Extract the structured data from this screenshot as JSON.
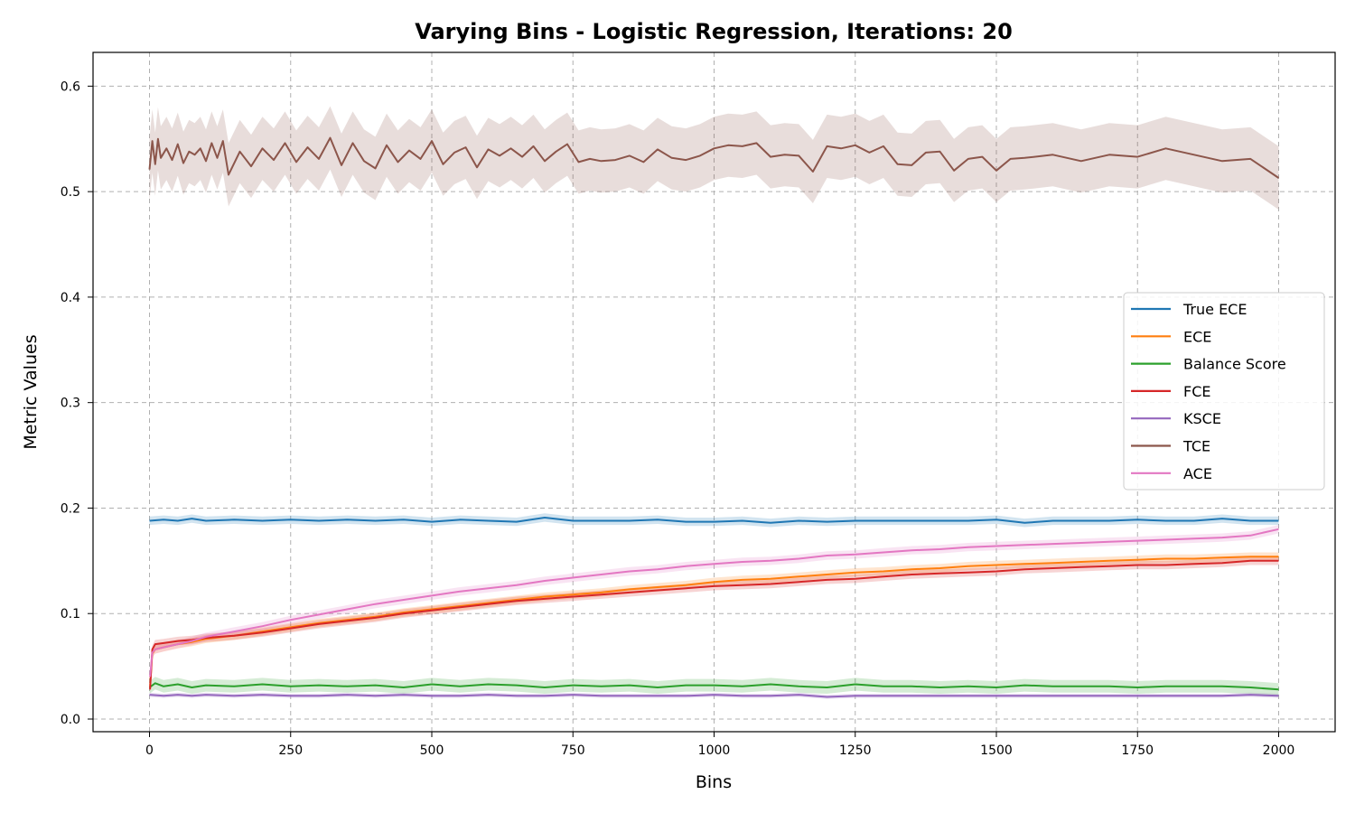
{
  "chart_data": {
    "type": "line",
    "title": "Varying Bins - Logistic Regression, Iterations: 20",
    "xlabel": "Bins",
    "ylabel": "Metric Values",
    "xlim": [
      -100,
      2100
    ],
    "ylim": [
      -0.012,
      0.632
    ],
    "xticks": [
      0,
      250,
      500,
      750,
      1000,
      1250,
      1500,
      1750,
      2000
    ],
    "xtick_labels": [
      "0",
      "250",
      "500",
      "750",
      "1000",
      "1250",
      "1500",
      "1750",
      "2000"
    ],
    "yticks": [
      0.0,
      0.1,
      0.2,
      0.3,
      0.4,
      0.5,
      0.6
    ],
    "ytick_labels": [
      "0.0",
      "0.1",
      "0.2",
      "0.3",
      "0.4",
      "0.5",
      "0.6"
    ],
    "grid": true,
    "legend_position": "center-right",
    "series": [
      {
        "name": "True ECE",
        "color": "#1f77b4",
        "x": [
          0,
          25,
          50,
          75,
          100,
          150,
          200,
          250,
          300,
          350,
          400,
          450,
          500,
          550,
          600,
          650,
          700,
          750,
          800,
          850,
          900,
          950,
          1000,
          1050,
          1100,
          1150,
          1200,
          1250,
          1300,
          1350,
          1400,
          1450,
          1500,
          1550,
          1600,
          1650,
          1700,
          1750,
          1800,
          1850,
          1900,
          1950,
          2000
        ],
        "y": [
          0.188,
          0.189,
          0.188,
          0.19,
          0.188,
          0.189,
          0.188,
          0.189,
          0.188,
          0.189,
          0.188,
          0.189,
          0.187,
          0.189,
          0.188,
          0.187,
          0.191,
          0.188,
          0.188,
          0.188,
          0.189,
          0.187,
          0.187,
          0.188,
          0.186,
          0.188,
          0.187,
          0.188,
          0.188,
          0.188,
          0.188,
          0.188,
          0.189,
          0.186,
          0.188,
          0.188,
          0.188,
          0.189,
          0.188,
          0.188,
          0.19,
          0.188,
          0.188
        ],
        "band": 0.004
      },
      {
        "name": "ECE",
        "color": "#ff7f0e",
        "x": [
          1,
          5,
          10,
          25,
          50,
          75,
          100,
          150,
          200,
          250,
          300,
          350,
          400,
          450,
          500,
          550,
          600,
          650,
          700,
          750,
          800,
          850,
          900,
          950,
          1000,
          1050,
          1100,
          1150,
          1200,
          1250,
          1300,
          1350,
          1400,
          1450,
          1500,
          1550,
          1600,
          1650,
          1700,
          1750,
          1800,
          1850,
          1900,
          1950,
          2000
        ],
        "y": [
          0.031,
          0.062,
          0.066,
          0.068,
          0.071,
          0.073,
          0.076,
          0.079,
          0.083,
          0.087,
          0.091,
          0.094,
          0.097,
          0.101,
          0.104,
          0.107,
          0.11,
          0.113,
          0.116,
          0.118,
          0.12,
          0.123,
          0.125,
          0.127,
          0.13,
          0.132,
          0.133,
          0.135,
          0.137,
          0.139,
          0.14,
          0.142,
          0.143,
          0.145,
          0.146,
          0.147,
          0.148,
          0.149,
          0.15,
          0.151,
          0.152,
          0.152,
          0.153,
          0.154,
          0.154
        ],
        "band": 0.004
      },
      {
        "name": "Balance Score",
        "color": "#2ca02c",
        "x": [
          0,
          10,
          25,
          50,
          75,
          100,
          150,
          200,
          250,
          300,
          350,
          400,
          450,
          500,
          550,
          600,
          650,
          700,
          750,
          800,
          850,
          900,
          950,
          1000,
          1050,
          1100,
          1150,
          1200,
          1250,
          1300,
          1350,
          1400,
          1450,
          1500,
          1550,
          1600,
          1650,
          1700,
          1750,
          1800,
          1850,
          1900,
          1950,
          2000
        ],
        "y": [
          0.03,
          0.034,
          0.031,
          0.033,
          0.03,
          0.032,
          0.031,
          0.033,
          0.031,
          0.032,
          0.031,
          0.032,
          0.03,
          0.033,
          0.031,
          0.033,
          0.032,
          0.03,
          0.032,
          0.031,
          0.032,
          0.03,
          0.032,
          0.032,
          0.031,
          0.033,
          0.031,
          0.03,
          0.033,
          0.031,
          0.031,
          0.03,
          0.031,
          0.03,
          0.032,
          0.031,
          0.031,
          0.031,
          0.03,
          0.031,
          0.031,
          0.031,
          0.03,
          0.028
        ],
        "band": 0.006
      },
      {
        "name": "FCE",
        "color": "#d62728",
        "x": [
          1,
          5,
          10,
          25,
          50,
          75,
          100,
          150,
          200,
          250,
          300,
          350,
          400,
          450,
          500,
          550,
          600,
          650,
          700,
          750,
          800,
          850,
          900,
          950,
          1000,
          1050,
          1100,
          1150,
          1200,
          1250,
          1300,
          1350,
          1400,
          1450,
          1500,
          1550,
          1600,
          1650,
          1700,
          1750,
          1800,
          1850,
          1900,
          1950,
          2000
        ],
        "y": [
          0.028,
          0.066,
          0.071,
          0.072,
          0.074,
          0.075,
          0.077,
          0.079,
          0.082,
          0.086,
          0.09,
          0.093,
          0.096,
          0.1,
          0.103,
          0.106,
          0.109,
          0.112,
          0.114,
          0.116,
          0.118,
          0.12,
          0.122,
          0.124,
          0.126,
          0.127,
          0.128,
          0.13,
          0.132,
          0.133,
          0.135,
          0.137,
          0.138,
          0.139,
          0.14,
          0.142,
          0.143,
          0.144,
          0.145,
          0.146,
          0.146,
          0.147,
          0.148,
          0.15,
          0.15
        ],
        "band": 0.004
      },
      {
        "name": "KSCE",
        "color": "#9467bd",
        "x": [
          0,
          25,
          50,
          75,
          100,
          150,
          200,
          250,
          300,
          350,
          400,
          450,
          500,
          550,
          600,
          650,
          700,
          750,
          800,
          850,
          900,
          950,
          1000,
          1050,
          1100,
          1150,
          1200,
          1250,
          1300,
          1350,
          1400,
          1450,
          1500,
          1550,
          1600,
          1650,
          1700,
          1750,
          1800,
          1850,
          1900,
          1950,
          2000
        ],
        "y": [
          0.023,
          0.022,
          0.023,
          0.022,
          0.023,
          0.022,
          0.023,
          0.022,
          0.022,
          0.023,
          0.022,
          0.023,
          0.022,
          0.022,
          0.023,
          0.022,
          0.022,
          0.023,
          0.022,
          0.022,
          0.022,
          0.022,
          0.023,
          0.022,
          0.022,
          0.023,
          0.021,
          0.022,
          0.022,
          0.022,
          0.022,
          0.022,
          0.022,
          0.022,
          0.022,
          0.022,
          0.022,
          0.022,
          0.022,
          0.022,
          0.022,
          0.023,
          0.022
        ],
        "band": 0.002
      },
      {
        "name": "TCE",
        "color": "#8c564b",
        "x": [
          0,
          5,
          10,
          15,
          20,
          30,
          40,
          50,
          60,
          70,
          80,
          90,
          100,
          110,
          120,
          130,
          140,
          160,
          180,
          200,
          220,
          240,
          260,
          280,
          300,
          320,
          340,
          360,
          380,
          400,
          420,
          440,
          460,
          480,
          500,
          520,
          540,
          560,
          580,
          600,
          620,
          640,
          660,
          680,
          700,
          720,
          740,
          760,
          780,
          800,
          825,
          850,
          875,
          900,
          925,
          950,
          975,
          1000,
          1025,
          1050,
          1075,
          1100,
          1125,
          1150,
          1175,
          1200,
          1225,
          1250,
          1275,
          1300,
          1325,
          1350,
          1375,
          1400,
          1425,
          1450,
          1475,
          1500,
          1525,
          1550,
          1600,
          1650,
          1700,
          1750,
          1800,
          1850,
          1900,
          1950,
          2000
        ],
        "y": [
          0.521,
          0.548,
          0.526,
          0.55,
          0.532,
          0.541,
          0.53,
          0.545,
          0.527,
          0.538,
          0.535,
          0.541,
          0.529,
          0.546,
          0.532,
          0.548,
          0.516,
          0.538,
          0.524,
          0.541,
          0.53,
          0.546,
          0.528,
          0.542,
          0.531,
          0.551,
          0.525,
          0.546,
          0.529,
          0.522,
          0.544,
          0.528,
          0.539,
          0.531,
          0.548,
          0.526,
          0.537,
          0.542,
          0.523,
          0.54,
          0.534,
          0.541,
          0.533,
          0.543,
          0.529,
          0.538,
          0.545,
          0.528,
          0.531,
          0.529,
          0.53,
          0.534,
          0.528,
          0.54,
          0.532,
          0.53,
          0.534,
          0.541,
          0.544,
          0.543,
          0.546,
          0.533,
          0.535,
          0.534,
          0.519,
          0.543,
          0.541,
          0.544,
          0.537,
          0.543,
          0.526,
          0.525,
          0.537,
          0.538,
          0.52,
          0.531,
          0.533,
          0.52,
          0.531,
          0.532,
          0.535,
          0.529,
          0.535,
          0.533,
          0.541,
          0.535,
          0.529,
          0.531,
          0.513
        ],
        "band": 0.03
      },
      {
        "name": "ACE",
        "color": "#e377c2",
        "x": [
          1,
          5,
          10,
          25,
          50,
          75,
          100,
          150,
          200,
          250,
          300,
          350,
          400,
          450,
          500,
          550,
          600,
          650,
          700,
          750,
          800,
          850,
          900,
          950,
          1000,
          1050,
          1100,
          1150,
          1200,
          1250,
          1300,
          1350,
          1400,
          1450,
          1500,
          1550,
          1600,
          1650,
          1700,
          1750,
          1800,
          1850,
          1900,
          1950,
          2000
        ],
        "y": [
          0.04,
          0.063,
          0.066,
          0.068,
          0.071,
          0.074,
          0.078,
          0.083,
          0.088,
          0.094,
          0.099,
          0.104,
          0.109,
          0.113,
          0.117,
          0.121,
          0.124,
          0.127,
          0.131,
          0.134,
          0.137,
          0.14,
          0.142,
          0.145,
          0.147,
          0.149,
          0.15,
          0.152,
          0.155,
          0.156,
          0.158,
          0.16,
          0.161,
          0.163,
          0.164,
          0.165,
          0.166,
          0.167,
          0.168,
          0.169,
          0.17,
          0.171,
          0.172,
          0.174,
          0.18
        ],
        "band": 0.004
      }
    ]
  }
}
